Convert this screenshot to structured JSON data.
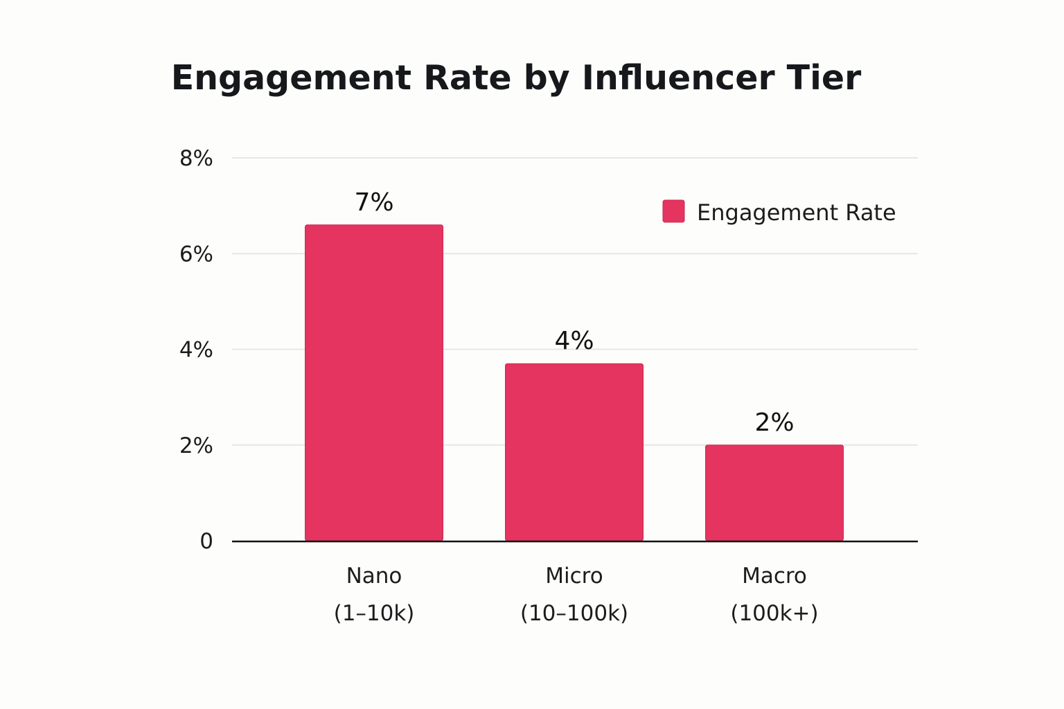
{
  "chart_data": {
    "type": "bar",
    "title": "Engagement Rate by Influencer Tier",
    "xlabel": "",
    "ylabel": "",
    "categories": [
      [
        "Nano",
        "(1–10k)"
      ],
      [
        "Micro",
        "(10–100k)"
      ],
      [
        "Macro",
        "(100k+)"
      ]
    ],
    "series": [
      {
        "name": "Engagement Rate",
        "values": [
          6.6,
          3.7,
          2.0
        ],
        "data_labels": [
          "7%",
          "4%",
          "2%"
        ],
        "color": "#e5345f"
      }
    ],
    "ylim": [
      0,
      8
    ],
    "yticks": [
      0,
      2,
      4,
      6,
      8
    ],
    "ytick_labels": [
      "0",
      "2%",
      "4%",
      "6%",
      "8%"
    ],
    "grid": true,
    "legend_position": "top-right",
    "colors": {
      "grid": "#e6e6e6",
      "axis": "#111111",
      "bar_stroke": "#c92a51"
    }
  }
}
